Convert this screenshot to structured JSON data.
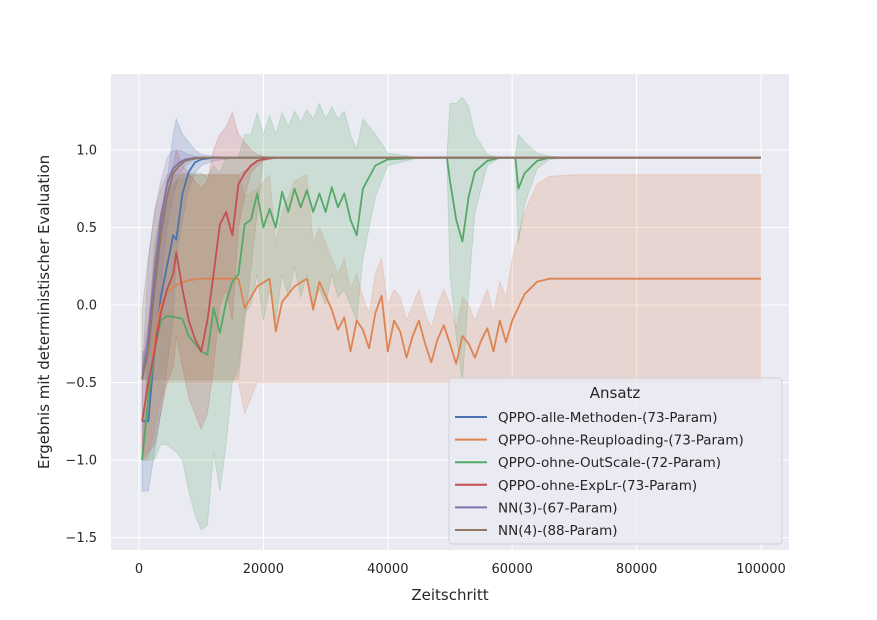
{
  "chart_data": {
    "type": "line",
    "title": "",
    "xlabel": "Zeitschritt",
    "ylabel": "Ergebnis mit deterministischer Evaluation",
    "xlim": [
      -4500,
      104500
    ],
    "ylim": [
      -1.58,
      1.49
    ],
    "xticks": [
      0,
      20000,
      40000,
      60000,
      80000,
      100000
    ],
    "xtick_labels": [
      "0",
      "20000",
      "40000",
      "60000",
      "80000",
      "100000"
    ],
    "yticks": [
      -1.5,
      -1.0,
      -0.5,
      0.0,
      0.5,
      1.0
    ],
    "ytick_labels": [
      "−1.5",
      "−1.0",
      "−0.5",
      "0.0",
      "0.5",
      "1.0"
    ],
    "grid": true,
    "legend": {
      "title": "Ansatz",
      "placement": "lower-right"
    },
    "series": [
      {
        "name": "QPPO-alle-Methoden-(73-Param)",
        "color": "#4c72b0",
        "x": [
          500,
          1500,
          2500,
          3500,
          4500,
          5500,
          6000,
          7000,
          8000,
          9000,
          10000,
          12000,
          14000,
          16000,
          20000,
          30000,
          50000,
          100000
        ],
        "y": [
          -0.75,
          -0.75,
          -0.3,
          0.05,
          0.25,
          0.45,
          0.42,
          0.72,
          0.86,
          0.92,
          0.94,
          0.95,
          0.95,
          0.95,
          0.95,
          0.95,
          0.95,
          0.95
        ],
        "lower": [
          -1.2,
          -1.2,
          -0.95,
          -0.7,
          -0.4,
          -0.1,
          0.3,
          0.55,
          0.75,
          0.85,
          0.9,
          0.93,
          0.94,
          0.95,
          0.95,
          0.95,
          0.95,
          0.95
        ],
        "upper": [
          -0.3,
          -0.3,
          0.2,
          0.5,
          0.8,
          1.1,
          1.2,
          1.1,
          1.05,
          1.0,
          0.97,
          0.96,
          0.95,
          0.95,
          0.95,
          0.95,
          0.95,
          0.95
        ]
      },
      {
        "name": "QPPO-ohne-Reuploading-(73-Param)",
        "color": "#dd8452",
        "x": [
          500,
          1500,
          2500,
          3500,
          4500,
          6000,
          8000,
          10000,
          12000,
          14000,
          16000,
          17000,
          19000,
          21000,
          22000,
          23000,
          25000,
          27000,
          28000,
          29000,
          31000,
          32000,
          33000,
          34000,
          35000,
          36000,
          37000,
          38000,
          39000,
          40000,
          41000,
          42000,
          43000,
          44000,
          45000,
          46000,
          47000,
          48000,
          49000,
          50000,
          51000,
          52000,
          53000,
          54000,
          55000,
          56000,
          57000,
          58000,
          59000,
          60000,
          62000,
          64000,
          66000,
          70000,
          80000,
          90000,
          100000
        ],
        "y": [
          -1.0,
          -0.6,
          -0.2,
          0.0,
          0.08,
          0.13,
          0.16,
          0.17,
          0.17,
          0.17,
          0.17,
          -0.02,
          0.12,
          0.17,
          -0.17,
          0.02,
          0.12,
          0.17,
          -0.03,
          0.15,
          -0.03,
          -0.16,
          -0.08,
          -0.3,
          -0.1,
          -0.16,
          -0.28,
          -0.05,
          0.06,
          -0.3,
          -0.1,
          -0.17,
          -0.34,
          -0.2,
          -0.1,
          -0.25,
          -0.37,
          -0.22,
          -0.13,
          -0.25,
          -0.38,
          -0.2,
          -0.25,
          -0.34,
          -0.23,
          -0.15,
          -0.3,
          -0.1,
          -0.24,
          -0.1,
          0.07,
          0.15,
          0.17,
          0.17,
          0.17,
          0.17,
          0.17
        ],
        "lower": [
          -1.0,
          -1.0,
          -0.8,
          -0.6,
          -0.5,
          -0.5,
          -0.5,
          -0.5,
          -0.5,
          -0.5,
          -0.5,
          -0.7,
          -0.5,
          -0.5,
          -0.5,
          -0.5,
          -0.5,
          -0.5,
          -0.5,
          -0.5,
          -0.5,
          -0.5,
          -0.5,
          -0.5,
          -0.5,
          -0.5,
          -0.5,
          -0.5,
          -0.5,
          -0.5,
          -0.5,
          -0.5,
          -0.5,
          -0.5,
          -0.5,
          -0.5,
          -0.5,
          -0.5,
          -0.5,
          -0.5,
          -0.5,
          -0.5,
          -0.5,
          -0.5,
          -0.5,
          -0.5,
          -0.5,
          -0.5,
          -0.5,
          -0.5,
          -0.5,
          -0.5,
          -0.5,
          -0.5,
          -0.5,
          -0.5,
          -0.5
        ],
        "upper": [
          -0.9,
          -0.3,
          0.3,
          0.6,
          0.75,
          0.8,
          0.83,
          0.84,
          0.84,
          0.84,
          0.84,
          0.7,
          0.75,
          0.84,
          0.4,
          0.6,
          0.8,
          0.84,
          0.4,
          0.5,
          0.3,
          0.2,
          0.3,
          0.1,
          0.2,
          0.05,
          -0.05,
          0.2,
          0.3,
          0.0,
          0.1,
          0.05,
          -0.1,
          0.0,
          0.1,
          -0.05,
          -0.15,
          0.0,
          0.1,
          0.0,
          -0.15,
          0.05,
          0.0,
          -0.1,
          0.0,
          0.1,
          -0.05,
          0.15,
          0.05,
          0.3,
          0.6,
          0.78,
          0.83,
          0.84,
          0.84,
          0.84,
          0.84
        ]
      },
      {
        "name": "QPPO-ohne-OutScale-(72-Param)",
        "color": "#55a868",
        "x": [
          500,
          1500,
          2500,
          3500,
          4500,
          6000,
          7000,
          8000,
          9000,
          10000,
          11000,
          12000,
          13000,
          14000,
          15000,
          16000,
          17000,
          18000,
          19000,
          20000,
          21000,
          22000,
          23000,
          24000,
          25000,
          26000,
          27000,
          28000,
          29000,
          30000,
          31000,
          32000,
          33000,
          34000,
          35000,
          36000,
          38000,
          40000,
          45000,
          49500,
          50000,
          51000,
          52000,
          53000,
          54000,
          56000,
          58000,
          60000,
          60500,
          61000,
          62000,
          64000,
          66000,
          70000,
          100000
        ],
        "y": [
          -1.0,
          -0.6,
          -0.3,
          -0.1,
          -0.07,
          -0.08,
          -0.09,
          -0.2,
          -0.25,
          -0.3,
          -0.32,
          -0.02,
          -0.18,
          0.02,
          0.15,
          0.2,
          0.52,
          0.55,
          0.72,
          0.5,
          0.62,
          0.5,
          0.73,
          0.6,
          0.75,
          0.63,
          0.74,
          0.6,
          0.72,
          0.6,
          0.76,
          0.63,
          0.72,
          0.55,
          0.45,
          0.75,
          0.9,
          0.94,
          0.95,
          0.95,
          0.8,
          0.55,
          0.41,
          0.7,
          0.86,
          0.93,
          0.95,
          0.95,
          0.95,
          0.75,
          0.85,
          0.93,
          0.95,
          0.95,
          0.95
        ],
        "lower": [
          -1.0,
          -1.0,
          -1.0,
          -0.9,
          -0.9,
          -0.95,
          -1.0,
          -1.2,
          -1.35,
          -1.45,
          -1.42,
          -0.95,
          -1.2,
          -0.9,
          -0.5,
          -0.4,
          -0.05,
          0.0,
          0.2,
          -0.1,
          0.1,
          -0.1,
          0.2,
          0.05,
          0.25,
          0.05,
          0.2,
          0.0,
          0.1,
          0.0,
          0.2,
          0.05,
          0.1,
          0.0,
          -0.1,
          0.3,
          0.7,
          0.9,
          0.95,
          0.95,
          0.2,
          -0.2,
          -0.5,
          0.1,
          0.6,
          0.9,
          0.95,
          0.95,
          0.95,
          0.4,
          0.65,
          0.88,
          0.94,
          0.95,
          0.95
        ],
        "upper": [
          -1.0,
          -0.2,
          0.4,
          0.6,
          0.7,
          0.8,
          0.85,
          0.85,
          0.85,
          0.85,
          0.82,
          0.9,
          0.85,
          0.95,
          0.95,
          0.95,
          1.1,
          1.1,
          1.24,
          1.1,
          1.22,
          1.1,
          1.24,
          1.15,
          1.25,
          1.18,
          1.26,
          1.2,
          1.3,
          1.2,
          1.28,
          1.2,
          1.25,
          1.1,
          1.0,
          1.2,
          1.1,
          0.98,
          0.95,
          0.95,
          1.3,
          1.3,
          1.34,
          1.28,
          1.1,
          0.97,
          0.95,
          0.95,
          0.95,
          1.1,
          1.05,
          0.98,
          0.96,
          0.95,
          0.95
        ]
      },
      {
        "name": "QPPO-ohne-ExpLr-(73-Param)",
        "color": "#c44e52",
        "x": [
          500,
          1500,
          2500,
          3500,
          4500,
          5500,
          6000,
          7000,
          8000,
          9000,
          10000,
          11000,
          12000,
          13000,
          14000,
          15000,
          16000,
          17000,
          18000,
          19000,
          20000,
          22000,
          24000,
          30000,
          100000
        ],
        "y": [
          -0.75,
          -0.5,
          -0.3,
          -0.05,
          0.1,
          0.2,
          0.34,
          0.1,
          -0.1,
          -0.22,
          -0.3,
          -0.1,
          0.2,
          0.52,
          0.6,
          0.45,
          0.78,
          0.85,
          0.9,
          0.93,
          0.94,
          0.95,
          0.95,
          0.95,
          0.95
        ],
        "lower": [
          -1.0,
          -0.95,
          -0.9,
          -0.7,
          -0.5,
          -0.4,
          -0.2,
          -0.4,
          -0.6,
          -0.7,
          -0.8,
          -0.7,
          -0.4,
          0.0,
          0.1,
          -0.1,
          0.5,
          0.7,
          0.85,
          0.9,
          0.93,
          0.95,
          0.95,
          0.95,
          0.95
        ],
        "upper": [
          -0.4,
          -0.1,
          0.3,
          0.6,
          0.8,
          0.9,
          1.0,
          0.9,
          0.85,
          0.8,
          0.75,
          0.8,
          1.0,
          1.1,
          1.15,
          1.24,
          1.1,
          1.05,
          1.0,
          0.97,
          0.96,
          0.95,
          0.95,
          0.95,
          0.95
        ]
      },
      {
        "name": "NN(3)-(67-Param)",
        "color": "#8172b3",
        "x": [
          500,
          1500,
          2500,
          3500,
          4500,
          5500,
          6500,
          7500,
          9000,
          11000,
          14000,
          20000,
          100000
        ],
        "y": [
          -0.48,
          -0.2,
          0.2,
          0.55,
          0.78,
          0.88,
          0.92,
          0.94,
          0.95,
          0.95,
          0.95,
          0.95,
          0.95
        ],
        "lower": [
          -0.48,
          -0.48,
          -0.3,
          0.1,
          0.5,
          0.7,
          0.85,
          0.9,
          0.94,
          0.95,
          0.95,
          0.95,
          0.95
        ],
        "upper": [
          -0.48,
          0.3,
          0.6,
          0.8,
          0.95,
          1.0,
          1.0,
          0.98,
          0.96,
          0.95,
          0.95,
          0.95,
          0.95
        ]
      },
      {
        "name": "NN(4)-(88-Param)",
        "color": "#937860",
        "x": [
          500,
          1500,
          2500,
          3500,
          4500,
          5500,
          6500,
          7500,
          8500,
          10000,
          12000,
          16000,
          20000,
          100000
        ],
        "y": [
          -0.48,
          -0.3,
          0.1,
          0.45,
          0.7,
          0.85,
          0.9,
          0.93,
          0.94,
          0.95,
          0.95,
          0.95,
          0.95,
          0.95
        ],
        "lower": [
          -0.48,
          -0.48,
          -0.48,
          -0.48,
          -0.48,
          -0.48,
          -0.48,
          -0.48,
          -0.48,
          -0.48,
          -0.48,
          -0.48,
          0.95,
          0.95
        ],
        "upper": [
          -0.03,
          0.3,
          0.6,
          0.75,
          0.84,
          0.84,
          0.84,
          0.84,
          0.84,
          0.84,
          0.84,
          0.84,
          0.95,
          0.95
        ]
      }
    ]
  }
}
